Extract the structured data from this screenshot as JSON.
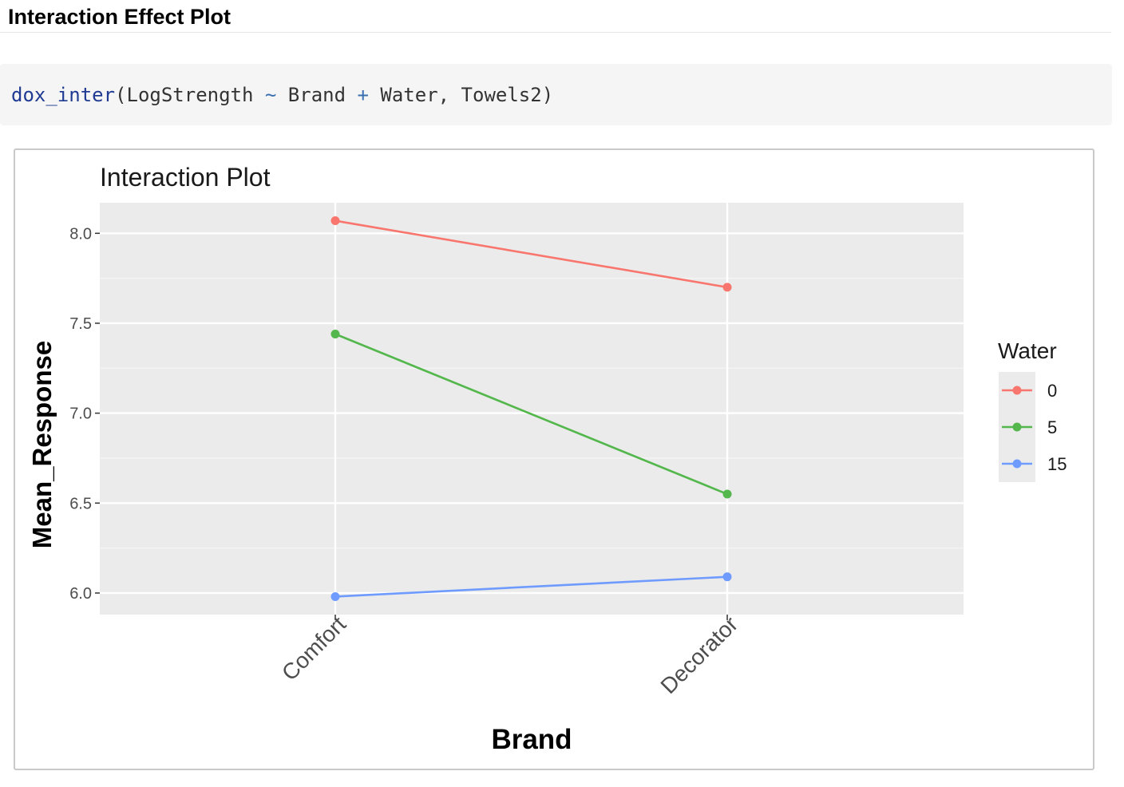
{
  "page": {
    "heading": "Interaction Effect Plot"
  },
  "code": {
    "fn": "dox_inter",
    "open": "(LogStrength ",
    "tilde": "~",
    "mid1": " Brand ",
    "plus": "+",
    "mid2": " Water, Towels2)"
  },
  "chart_data": {
    "type": "line",
    "title": "Interaction Plot",
    "xlabel": "Brand",
    "ylabel": "Mean_Response",
    "categories": [
      "Comfort",
      "Decorator"
    ],
    "ylim": [
      5.88,
      8.17
    ],
    "yticks": [
      6.0,
      6.5,
      7.0,
      7.5,
      8.0
    ],
    "ytick_labels": [
      "6.0",
      "6.5",
      "7.0",
      "7.5",
      "8.0"
    ],
    "grid": true,
    "legend": {
      "title": "Water",
      "position": "right"
    },
    "series": [
      {
        "name": "0",
        "color": "#f8766d",
        "values": [
          8.07,
          7.7
        ]
      },
      {
        "name": "5",
        "color": "#53b74c",
        "values": [
          7.44,
          6.55
        ]
      },
      {
        "name": "15",
        "color": "#6f9bff",
        "values": [
          5.98,
          6.09
        ]
      }
    ]
  }
}
